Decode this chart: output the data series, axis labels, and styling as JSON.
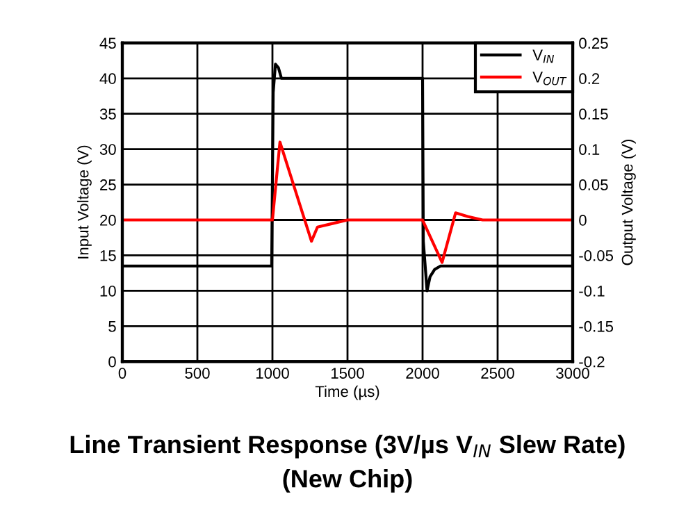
{
  "chart_data": {
    "type": "line",
    "title": "Line Transient Response (3V/µs V$_{IN}$ Slew Rate)",
    "subtitle": "(New Chip)",
    "xlabel": "Time (µs)",
    "ylabel": "Input Voltage (V)",
    "y2label": "Output Voltage (V)",
    "xlim": [
      0,
      3000
    ],
    "xticks": [
      0,
      500,
      1000,
      1500,
      2000,
      2500,
      3000
    ],
    "ylim": [
      0,
      45
    ],
    "yticks": [
      0,
      5,
      10,
      15,
      20,
      25,
      30,
      35,
      40,
      45
    ],
    "y2lim": [
      -0.2,
      0.25
    ],
    "y2ticks": [
      -0.2,
      -0.15,
      -0.1,
      -0.05,
      0,
      0.05,
      0.1,
      0.15,
      0.2,
      0.25
    ],
    "grid": true,
    "legend": "top right",
    "series": [
      {
        "name": "V$_{IN}$",
        "color": "#000000",
        "x": [
          0,
          500,
          995,
          1005,
          1020,
          1040,
          1060,
          1100,
          1500,
          2000,
          2005,
          2030,
          2050,
          2080,
          2120,
          2500,
          3000
        ],
        "values": [
          13.5,
          13.5,
          13.5,
          38,
          42,
          41.5,
          40,
          40,
          40,
          40,
          17,
          10,
          12,
          13,
          13.5,
          13.5,
          13.5
        ]
      },
      {
        "name": "V$_{OUT}$",
        "color": "#ff0000",
        "axis": "y2",
        "x": [
          0,
          500,
          1000,
          1050,
          1260,
          1300,
          1400,
          1500,
          2000,
          2130,
          2220,
          2300,
          2400,
          3000
        ],
        "values": [
          0,
          0,
          0,
          0.11,
          -0.03,
          -0.01,
          -0.005,
          0,
          0,
          -0.06,
          0.01,
          0.005,
          0,
          0
        ]
      }
    ]
  }
}
